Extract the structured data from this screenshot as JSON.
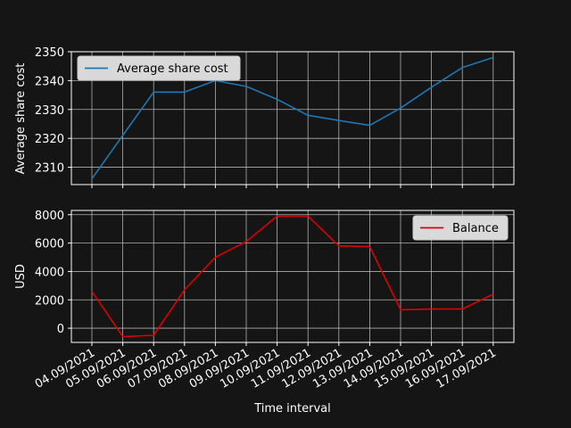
{
  "chart_data": [
    {
      "type": "line",
      "ylabel": "Average share cost",
      "legend_position": "upper-left",
      "grid": true,
      "x": [
        "04.09/2021",
        "05.09/2021",
        "06.09/2021",
        "07.09/2021",
        "08.09/2021",
        "09.09/2021",
        "10.09/2021",
        "11.09/2021",
        "12.09/2021",
        "13.09/2021",
        "14.09/2021",
        "15.09/2021",
        "16.09/2021",
        "17.09/2021"
      ],
      "ylim": [
        2304,
        2350
      ],
      "yticks": [
        2310,
        2320,
        2330,
        2340,
        2350
      ],
      "series": [
        {
          "name": "Average share cost",
          "color": "#1f77b4",
          "values": [
            2306,
            2321,
            2336,
            2336,
            2340,
            2338,
            2333.5,
            2328,
            2326.2,
            2324.5,
            2330.5,
            2337.7,
            2344.5,
            2348
          ]
        }
      ]
    },
    {
      "type": "line",
      "ylabel": "USD",
      "xlabel": "Time interval",
      "legend_position": "upper-right",
      "grid": true,
      "x": [
        "04.09/2021",
        "05.09/2021",
        "06.09/2021",
        "07.09/2021",
        "08.09/2021",
        "09.09/2021",
        "10.09/2021",
        "11.09/2021",
        "12.09/2021",
        "13.09/2021",
        "14.09/2021",
        "15.09/2021",
        "16.09/2021",
        "17.09/2021"
      ],
      "ylim": [
        -1000,
        8300
      ],
      "yticks": [
        0,
        2000,
        4000,
        6000,
        8000
      ],
      "series": [
        {
          "name": "Balance",
          "color": "#dd0000",
          "values": [
            2600,
            -600,
            -500,
            2700,
            5000,
            6100,
            7900,
            7900,
            5800,
            5750,
            1300,
            1350,
            1350,
            2400
          ]
        }
      ]
    }
  ]
}
